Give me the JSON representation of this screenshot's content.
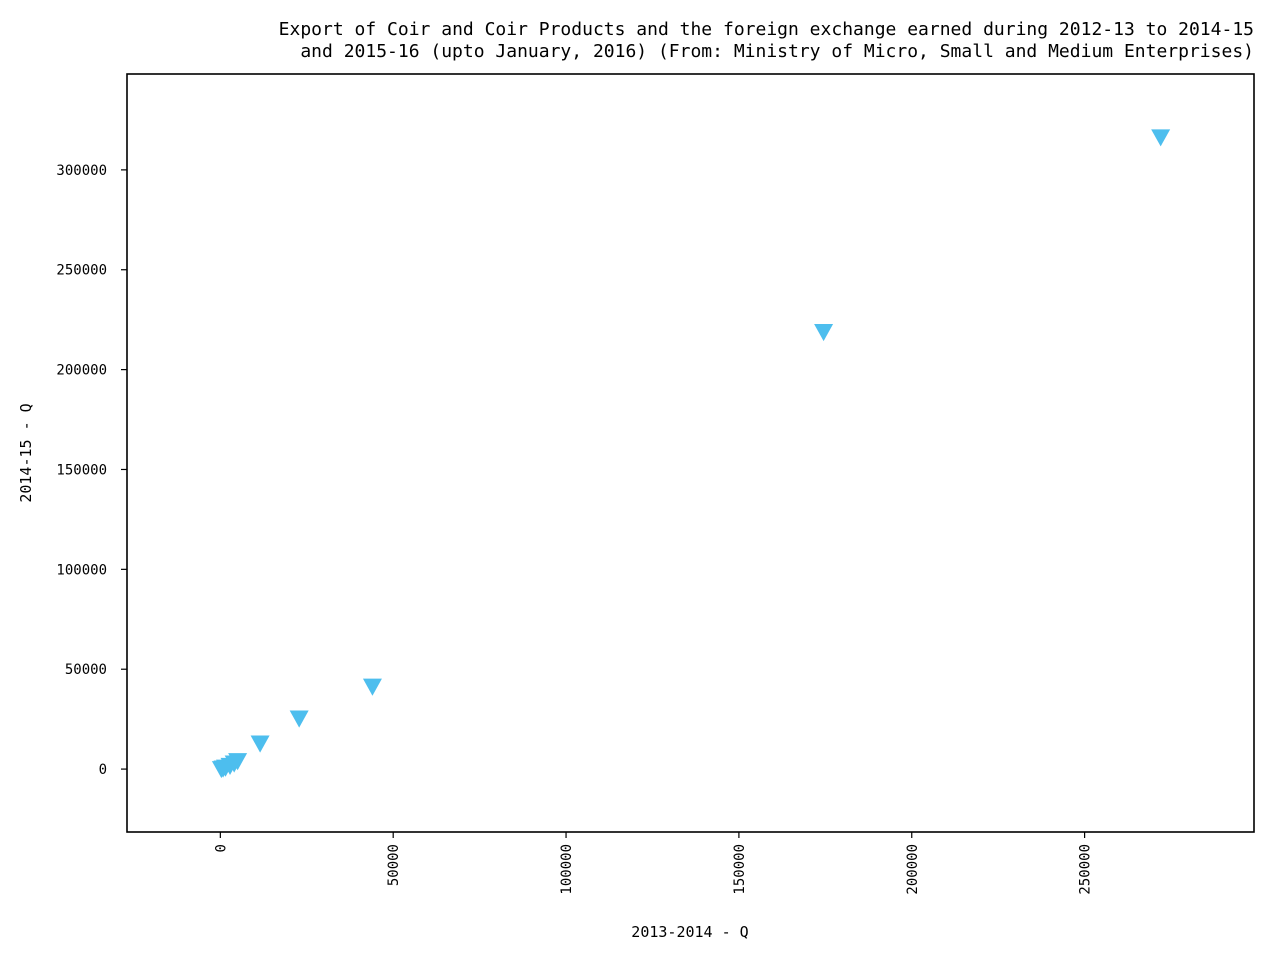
{
  "chart_data": {
    "type": "scatter",
    "title_lines": [
      "Export of Coir and Coir Products and the foreign exchange earned during 2012-13 to 2014-15",
      "and 2015-16 (upto January, 2016) (From: Ministry of Micro, Small and Medium Enterprises)"
    ],
    "xlabel": "2013-2014 - Q",
    "ylabel": "2014-15 - Q",
    "xlim": [
      -27000,
      299000
    ],
    "ylim": [
      -31500,
      348000
    ],
    "x_ticks": [
      0,
      50000,
      100000,
      150000,
      200000,
      250000
    ],
    "x_tick_labels": [
      "0",
      "50000",
      "100000",
      "150000",
      "200000",
      "250000"
    ],
    "y_ticks": [
      0,
      50000,
      100000,
      150000,
      200000,
      250000,
      300000
    ],
    "y_tick_labels": [
      "0",
      "50000",
      "100000",
      "150000",
      "200000",
      "250000",
      "300000"
    ],
    "marker": "triangle-down",
    "marker_color": "#4dbeee",
    "grid": false,
    "points": [
      {
        "x": 300,
        "y": 200
      },
      {
        "x": 800,
        "y": 500
      },
      {
        "x": 1500,
        "y": 900
      },
      {
        "x": 2800,
        "y": 1800
      },
      {
        "x": 4000,
        "y": 3000
      },
      {
        "x": 5000,
        "y": 4200
      },
      {
        "x": 11500,
        "y": 13000
      },
      {
        "x": 22800,
        "y": 25500
      },
      {
        "x": 44000,
        "y": 41500
      },
      {
        "x": 174500,
        "y": 219000
      },
      {
        "x": 272000,
        "y": 316500
      }
    ]
  }
}
